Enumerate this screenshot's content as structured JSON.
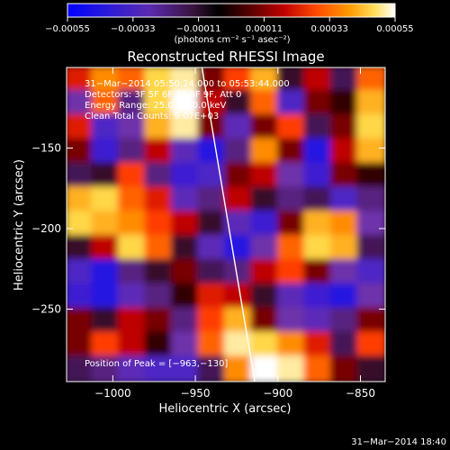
{
  "chart_data": {
    "type": "heatmap",
    "title": "Reconstructed RHESSI Image",
    "xlabel": "Heliocentric X (arcsec)",
    "ylabel": "Heliocentric Y (arcsec)",
    "xlim": [
      -1028,
      -835
    ],
    "ylim": [
      -295,
      -100
    ],
    "x_ticks": [
      -1000,
      -950,
      -900,
      -850
    ],
    "y_ticks": [
      -150,
      -200,
      -250
    ],
    "x_tick_labels": [
      "−1000",
      "−950",
      "−900",
      "−850"
    ],
    "y_tick_labels": [
      "−150",
      "−200",
      "−250"
    ],
    "colorbar": {
      "ticks": [
        -0.00055,
        -0.00033,
        -0.00011,
        0.00011,
        0.00033,
        0.00055
      ],
      "tick_labels": [
        "−0.00055",
        "−0.00033",
        "−0.00011",
        "0.00011",
        "0.00033",
        "0.00055"
      ],
      "unit": "(photons cm⁻² s⁻¹ asec⁻²)",
      "range": [
        -0.00055,
        0.00055
      ]
    },
    "annotations": {
      "time": "31−Mar−2014 05:50:24.000 to 05:53:44.000",
      "detectors": "Detectors: 3F 5F 6F 7F 8F 9F, Att 0",
      "energy": "Energy Range: 25.0 − 50.0 keV",
      "clean": "Clean    Total Counts: 9.07E+03",
      "peak": "Position of Peak = [−963,−130]"
    },
    "limb": [
      [
        -946,
        -100
      ],
      [
        -914,
        -295
      ]
    ],
    "grid": false,
    "intensity_grid": {
      "x0": -1028,
      "dx": 16.08,
      "y_top": -100,
      "dy": 15.0,
      "values": [
        [
          0.65,
          0.8,
          0.75,
          0.9,
          0.95,
          0.55,
          0.7,
          0.85,
          0.45,
          0.6,
          0.4,
          0.75
        ],
        [
          0.3,
          0.75,
          0.35,
          0.9,
          1.0,
          0.6,
          0.45,
          0.75,
          0.2,
          0.55,
          0.5,
          0.85
        ],
        [
          0.65,
          0.2,
          0.3,
          0.85,
          0.95,
          0.55,
          0.25,
          0.55,
          0.7,
          0.4,
          0.55,
          0.9
        ],
        [
          0.55,
          0.15,
          0.35,
          0.6,
          0.25,
          0.1,
          0.35,
          0.8,
          0.55,
          0.1,
          0.6,
          0.85
        ],
        [
          0.4,
          0.45,
          0.7,
          0.35,
          0.15,
          0.2,
          0.55,
          0.6,
          0.3,
          0.15,
          0.55,
          0.5
        ],
        [
          0.85,
          0.9,
          0.75,
          0.65,
          0.25,
          0.35,
          0.6,
          0.45,
          0.35,
          0.4,
          0.2,
          0.35
        ],
        [
          0.9,
          0.85,
          0.8,
          0.7,
          0.6,
          0.45,
          0.25,
          0.15,
          0.55,
          0.85,
          0.8,
          0.3
        ],
        [
          0.45,
          0.6,
          0.9,
          0.75,
          0.45,
          0.25,
          0.1,
          0.3,
          0.75,
          0.9,
          0.85,
          0.4
        ],
        [
          0.2,
          0.1,
          0.35,
          0.45,
          0.55,
          0.4,
          0.35,
          0.6,
          0.7,
          0.55,
          0.3,
          0.2
        ],
        [
          0.15,
          0.1,
          0.25,
          0.35,
          0.5,
          0.65,
          0.6,
          0.45,
          0.25,
          0.15,
          0.1,
          0.3
        ],
        [
          0.55,
          0.45,
          0.6,
          0.55,
          0.35,
          0.7,
          0.85,
          0.55,
          0.3,
          0.25,
          0.35,
          0.55
        ],
        [
          0.55,
          0.7,
          0.6,
          0.5,
          0.3,
          0.75,
          0.95,
          0.9,
          0.8,
          0.65,
          0.4,
          0.7
        ],
        [
          0.4,
          0.35,
          0.25,
          0.2,
          0.2,
          0.4,
          0.8,
          1.0,
          0.95,
          0.75,
          0.55,
          0.45
        ]
      ]
    }
  },
  "footer_timestamp": "31−Mar−2014 18:40"
}
